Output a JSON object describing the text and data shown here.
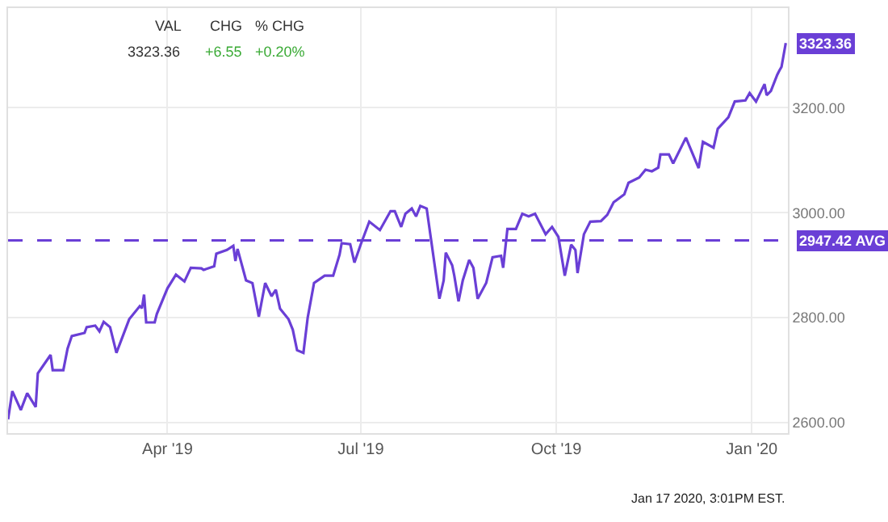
{
  "chart_data": {
    "type": "line",
    "x": [
      "2019-01-16",
      "2019-01-18",
      "2019-01-22",
      "2019-01-25",
      "2019-01-29",
      "2019-01-30",
      "2019-02-05",
      "2019-02-06",
      "2019-02-11",
      "2019-02-13",
      "2019-02-15",
      "2019-02-21",
      "2019-02-22",
      "2019-02-26",
      "2019-02-28",
      "2019-03-02",
      "2019-03-05",
      "2019-03-08",
      "2019-03-14",
      "2019-03-19",
      "2019-03-20",
      "2019-03-21",
      "2019-03-22",
      "2019-03-26",
      "2019-03-27",
      "2019-04-01",
      "2019-04-05",
      "2019-04-09",
      "2019-04-12",
      "2019-04-17",
      "2019-04-18",
      "2019-04-23",
      "2019-04-24",
      "2019-04-29",
      "2019-05-02",
      "2019-05-03",
      "2019-05-04",
      "2019-05-08",
      "2019-05-11",
      "2019-05-14",
      "2019-05-17",
      "2019-05-20",
      "2019-05-22",
      "2019-05-24",
      "2019-05-28",
      "2019-05-30",
      "2019-06-01",
      "2019-06-04",
      "2019-06-06",
      "2019-06-09",
      "2019-06-14",
      "2019-06-18",
      "2019-06-21",
      "2019-06-22",
      "2019-06-26",
      "2019-06-28",
      "2019-07-01",
      "2019-07-05",
      "2019-07-10",
      "2019-07-15",
      "2019-07-17",
      "2019-07-20",
      "2019-07-22",
      "2019-07-25",
      "2019-07-27",
      "2019-07-29",
      "2019-08-01",
      "2019-08-07",
      "2019-08-09",
      "2019-08-10",
      "2019-08-13",
      "2019-08-14",
      "2019-08-16",
      "2019-08-18",
      "2019-08-21",
      "2019-08-23",
      "2019-08-25",
      "2019-08-29",
      "2019-09-01",
      "2019-09-05",
      "2019-09-06",
      "2019-09-08",
      "2019-09-12",
      "2019-09-15",
      "2019-09-18",
      "2019-09-21",
      "2019-09-26",
      "2019-09-29",
      "2019-10-02",
      "2019-10-05",
      "2019-10-08",
      "2019-10-10",
      "2019-10-11",
      "2019-10-14",
      "2019-10-17",
      "2019-10-22",
      "2019-10-25",
      "2019-10-28",
      "2019-11-02",
      "2019-11-04",
      "2019-11-09",
      "2019-11-12",
      "2019-11-15",
      "2019-11-18",
      "2019-11-19",
      "2019-11-23",
      "2019-11-25",
      "2019-12-01",
      "2019-12-07",
      "2019-12-09",
      "2019-12-14",
      "2019-12-16",
      "2019-12-21",
      "2019-12-24",
      "2019-12-29",
      "2019-12-31",
      "2020-01-03",
      "2020-01-07",
      "2020-01-08",
      "2020-01-10",
      "2020-01-13",
      "2020-01-14",
      "2020-01-15",
      "2020-01-17"
    ],
    "series": [
      {
        "color": "#6a3fd6",
        "values": [
          2606,
          2660,
          2624,
          2656,
          2630,
          2694,
          2729,
          2700,
          2700,
          2741,
          2765,
          2771,
          2782,
          2785,
          2774,
          2792,
          2782,
          2733,
          2797,
          2822,
          2818,
          2844,
          2791,
          2791,
          2807,
          2856,
          2882,
          2869,
          2895,
          2894,
          2891,
          2898,
          2922,
          2929,
          2937,
          2908,
          2931,
          2871,
          2866,
          2802,
          2866,
          2841,
          2853,
          2817,
          2797,
          2777,
          2738,
          2733,
          2800,
          2866,
          2880,
          2880,
          2920,
          2942,
          2940,
          2905,
          2940,
          2983,
          2967,
          3003,
          3003,
          2973,
          2998,
          3008,
          2993,
          3013,
          3008,
          2836,
          2871,
          2924,
          2900,
          2880,
          2831,
          2871,
          2910,
          2895,
          2836,
          2866,
          2915,
          2918,
          2895,
          2969,
          2969,
          2998,
          2993,
          2998,
          2959,
          2973,
          2954,
          2880,
          2939,
          2929,
          2885,
          2959,
          2983,
          2984,
          2996,
          3020,
          3035,
          3057,
          3067,
          3082,
          3079,
          3086,
          3111,
          3111,
          3094,
          3143,
          3085,
          3135,
          3124,
          3160,
          3182,
          3212,
          3214,
          3228,
          3212,
          3245,
          3224,
          3232,
          3263,
          3271,
          3278,
          3323.36
        ]
      }
    ],
    "xlim": [
      "2019-01-16",
      "2020-01-18"
    ],
    "xticks": [
      {
        "value": "2019-04-01",
        "label": "Apr '19"
      },
      {
        "value": "2019-07-01",
        "label": "Jul '19"
      },
      {
        "value": "2019-10-01",
        "label": "Oct '19"
      },
      {
        "value": "2020-01-01",
        "label": "Jan '20"
      }
    ],
    "ylim": [
      2580,
      3390
    ],
    "yticks": [
      {
        "value": 2600,
        "label": "2600.00"
      },
      {
        "value": 2800,
        "label": "2800.00"
      },
      {
        "value": 3000,
        "label": "3000.00"
      },
      {
        "value": 3200,
        "label": "3200.00"
      }
    ],
    "ref_lines": [
      {
        "axis": "y",
        "value": 2947.42,
        "label": "2947.42 AVG",
        "color": "#6a3fd6",
        "line_style": "dashed"
      }
    ],
    "annotations": [
      "VAL",
      "CHG",
      "% CHG",
      "3323.36",
      "+6.55",
      "+0.20%",
      "Jan 17 2020, 3:01PM EST.",
      {
        "text": "3323.36",
        "x": "2020-01-17",
        "y": 3323.36
      }
    ],
    "grid": true,
    "legend": false,
    "marker": "none",
    "line_style": "solid"
  }
}
